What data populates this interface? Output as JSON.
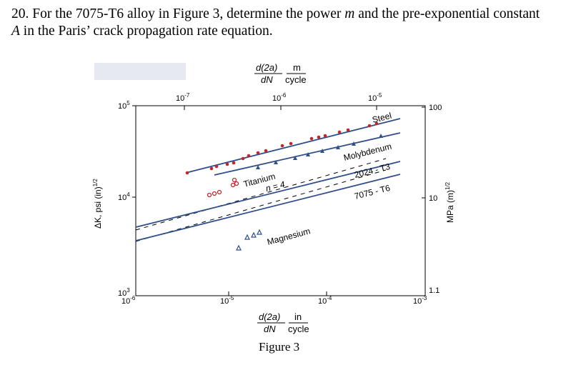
{
  "question": {
    "line1_a": "20. For the 7075-T6 alloy in Figure 3, determine the power ",
    "var_m": "m",
    "line1_b": " and the pre-exponential constant",
    "var_A": "A",
    "line2": " in the Paris’ crack propagation rate equation."
  },
  "figure": {
    "caption": "Figure 3",
    "top_axis_label": {
      "num": "d(2a)",
      "den": "dN",
      "unit_num": "m",
      "unit_den": "cycle"
    },
    "bottom_axis_label": {
      "num": "d(2a)",
      "den": "dN",
      "unit_num": "in",
      "unit_den": "cycle"
    },
    "left_axis_label": "ΔK, psi (in)",
    "left_axis_exp": "1/2",
    "right_axis_label": "MPa (m)",
    "right_axis_exp": "1/2",
    "top_ticks": [
      {
        "base": "10",
        "exp": "-7"
      },
      {
        "base": "10",
        "exp": "-6"
      },
      {
        "base": "10",
        "exp": "-5"
      }
    ],
    "bottom_ticks": [
      {
        "base": "10",
        "exp": "-6"
      },
      {
        "base": "10",
        "exp": "-5"
      },
      {
        "base": "10",
        "exp": "-4"
      },
      {
        "base": "10",
        "exp": "-3"
      }
    ],
    "left_ticks": [
      {
        "base": "10",
        "exp": "5"
      },
      {
        "base": "10",
        "exp": "4"
      },
      {
        "base": "10",
        "exp": "3"
      }
    ],
    "right_ticks": [
      "100",
      "10",
      "1.1"
    ],
    "series_labels": {
      "steel": "Steel",
      "molybdenum": "Molybdenum",
      "titanium": "Titanium",
      "al2024": "2024 - T3",
      "al7075": "7075 - T6",
      "magnesium": "Magnesium",
      "slope": "n = 4"
    }
  }
}
